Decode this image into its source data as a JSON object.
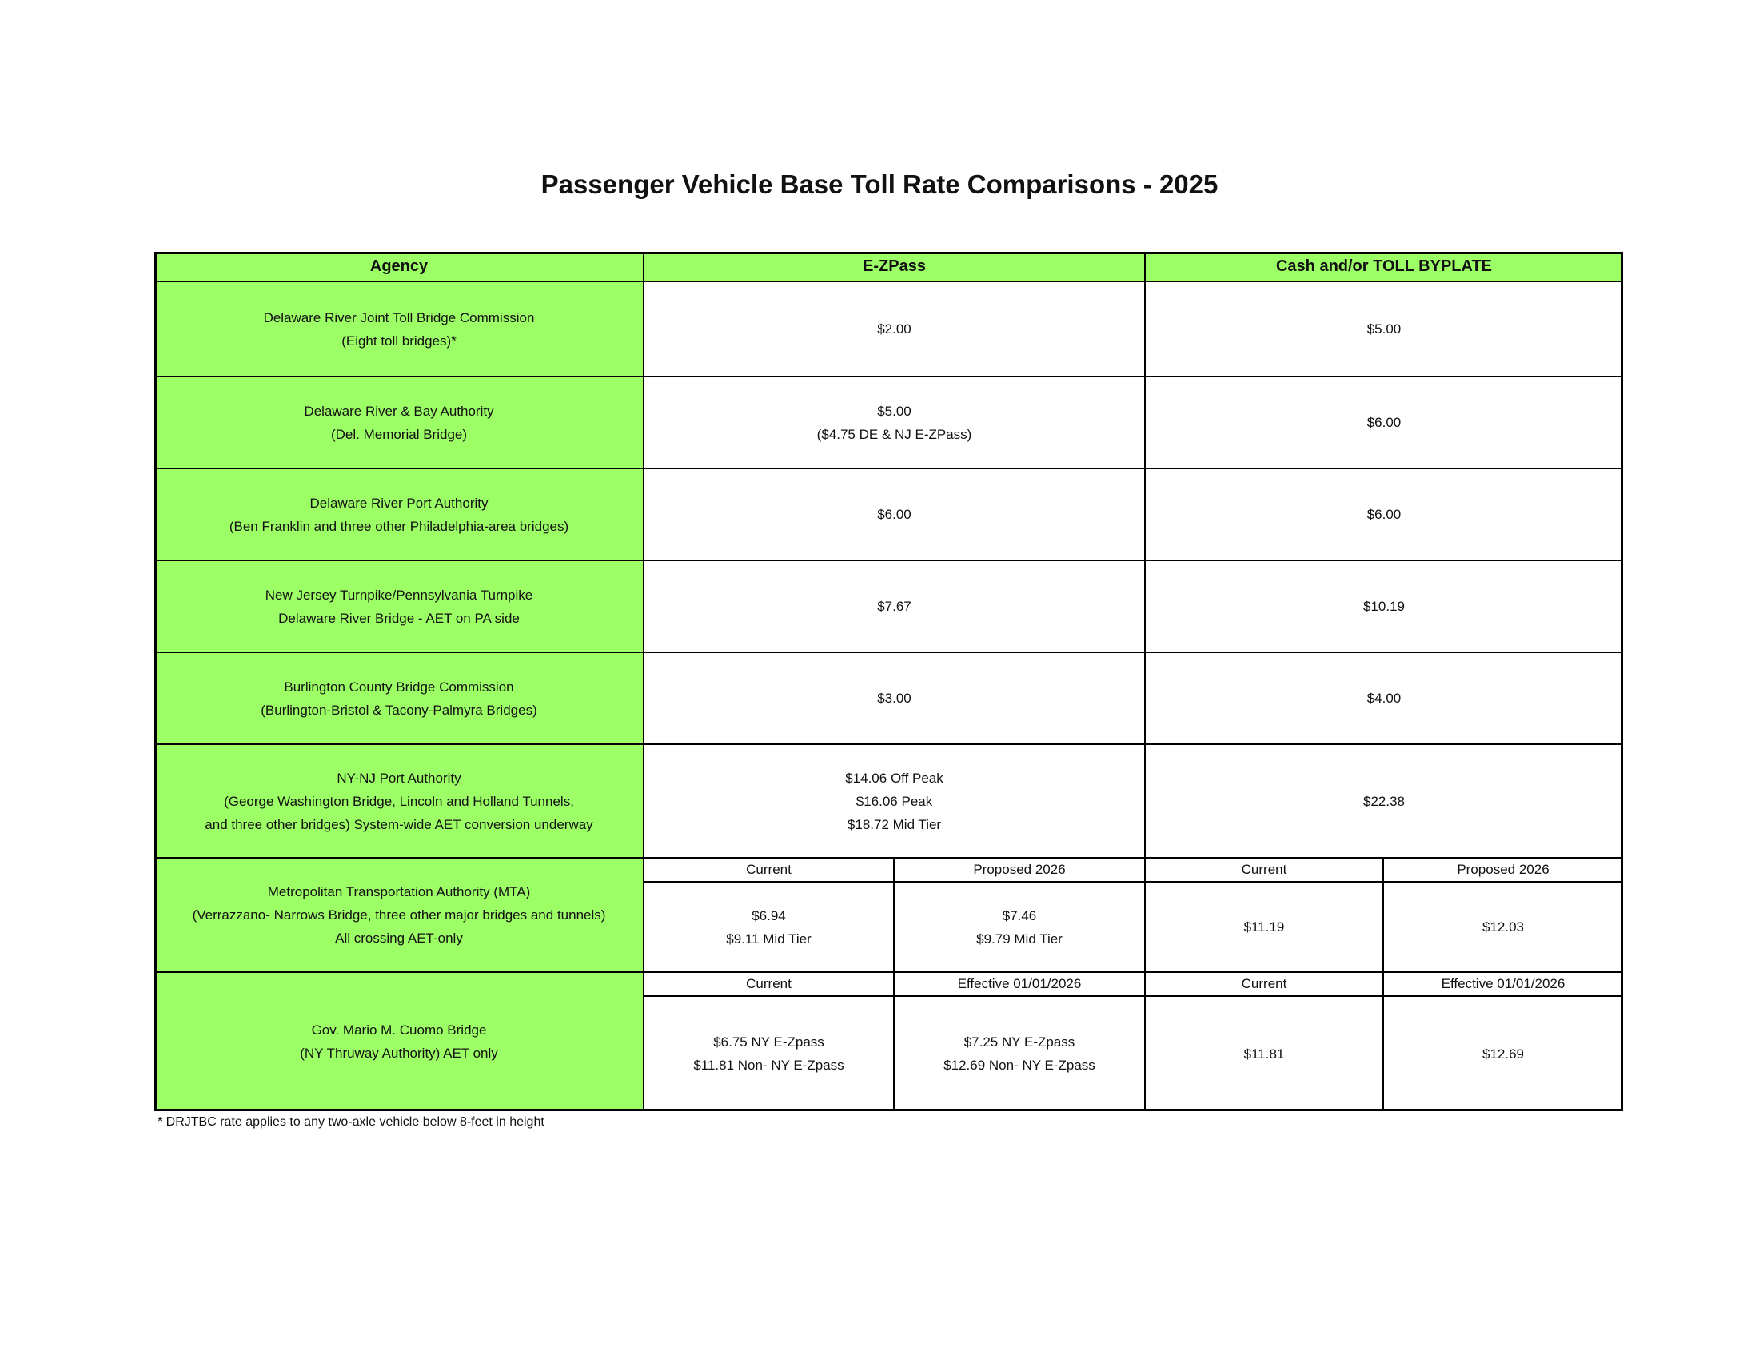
{
  "title": "Passenger Vehicle Base Toll Rate Comparisons - 2025",
  "colors": {
    "agency_fill": "#9dff66",
    "border": "#000000"
  },
  "headers": {
    "agency": "Agency",
    "ezpass": "E-ZPass",
    "cash": "Cash and/or TOLL BYPLATE"
  },
  "rows": [
    {
      "agency": [
        "Delaware River Joint Toll Bridge Commission",
        "(Eight toll bridges)*"
      ],
      "ezpass": [
        "$2.00"
      ],
      "cash": [
        "$5.00"
      ]
    },
    {
      "agency": [
        "Delaware River & Bay Authority",
        "(Del. Memorial Bridge)"
      ],
      "ezpass": [
        "$5.00",
        "($4.75 DE & NJ E-ZPass)"
      ],
      "cash": [
        "$6.00"
      ]
    },
    {
      "agency": [
        "Delaware River Port Authority",
        "(Ben Franklin and three other Philadelphia-area bridges)"
      ],
      "ezpass": [
        "$6.00"
      ],
      "cash": [
        "$6.00"
      ]
    },
    {
      "agency": [
        "New Jersey Turnpike/Pennsylvania Turnpike",
        "Delaware River Bridge - AET on PA side"
      ],
      "ezpass": [
        "$7.67"
      ],
      "cash": [
        "$10.19"
      ]
    },
    {
      "agency": [
        "Burlington County Bridge Commission",
        "(Burlington-Bristol & Tacony-Palmyra Bridges)"
      ],
      "ezpass": [
        "$3.00"
      ],
      "cash": [
        "$4.00"
      ]
    },
    {
      "agency": [
        "NY-NJ Port Authority",
        "(George Washington Bridge, Lincoln and Holland Tunnels,",
        "and three other bridges) System-wide AET conversion underway"
      ],
      "ezpass": [
        "$14.06 Off Peak",
        "$16.06 Peak",
        "$18.72 Mid Tier"
      ],
      "cash": [
        "$22.38"
      ]
    }
  ],
  "split_rows": [
    {
      "agency": [
        "Metropolitan Transportation Authority (MTA)",
        "(Verrazzano- Narrows Bridge, three other major bridges and tunnels)",
        "All crossing AET-only"
      ],
      "subheaders": [
        "Current",
        "Proposed 2026",
        "Current",
        "Proposed 2026"
      ],
      "values": [
        [
          "$6.94",
          "$9.11 Mid Tier"
        ],
        [
          "$7.46",
          "$9.79 Mid Tier"
        ],
        [
          "$11.19"
        ],
        [
          "$12.03"
        ]
      ]
    },
    {
      "agency": [
        "Gov. Mario M. Cuomo Bridge",
        "(NY Thruway Authority) AET only"
      ],
      "subheaders": [
        "Current",
        "Effective 01/01/2026",
        "Current",
        "Effective 01/01/2026"
      ],
      "values": [
        [
          "$6.75 NY E-Zpass",
          "$11.81 Non- NY E-Zpass"
        ],
        [
          "$7.25 NY E-Zpass",
          "$12.69 Non- NY E-Zpass"
        ],
        [
          "$11.81"
        ],
        [
          "$12.69"
        ]
      ]
    }
  ],
  "footnote": "* DRJTBC rate applies to any two-axle vehicle below 8-feet in height"
}
